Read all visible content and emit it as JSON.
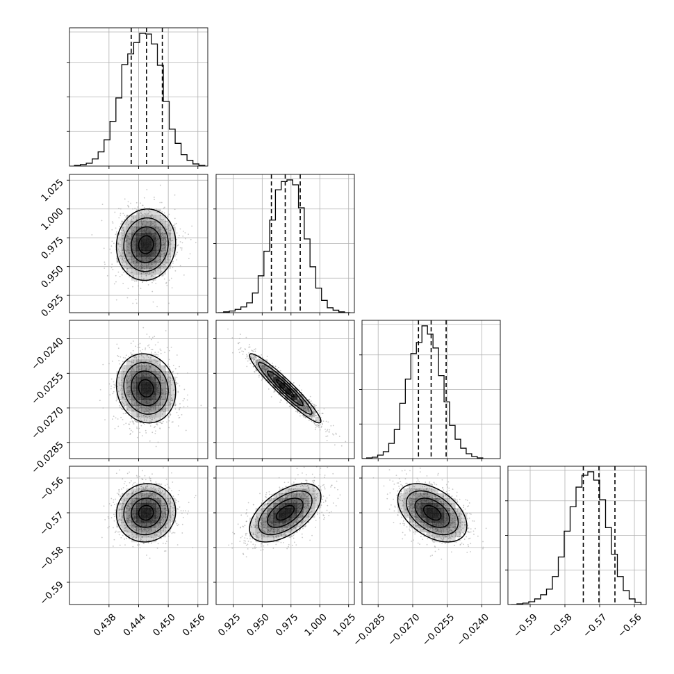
{
  "chart_data": {
    "type": "corner",
    "parameters": 4,
    "ticks": [
      {
        "values": [
          0.438,
          0.444,
          0.45,
          0.456
        ],
        "labels": [
          "0.438",
          "0.444",
          "0.450",
          "0.456"
        ],
        "range": [
          0.43,
          0.458
        ]
      },
      {
        "values": [
          0.925,
          0.95,
          0.975,
          1.0,
          1.025
        ],
        "labels": [
          "0.925",
          "0.950",
          "0.975",
          "1.000",
          "1.025"
        ],
        "range": [
          0.91,
          1.03
        ]
      },
      {
        "values": [
          -0.0285,
          -0.027,
          -0.0255,
          -0.024
        ],
        "labels": [
          "−0.0285",
          "−0.0270",
          "−0.0255",
          "−0.0240"
        ],
        "range": [
          -0.0292,
          -0.0232
        ]
      },
      {
        "values": [
          -0.59,
          -0.58,
          -0.57,
          -0.56
        ],
        "labels": [
          "−0.59",
          "−0.58",
          "−0.57",
          "−0.56"
        ],
        "range": [
          -0.5964,
          -0.5566
        ]
      }
    ],
    "histograms": [
      {
        "parameter": 0,
        "bin_centers": [
          0.4316,
          0.4328,
          0.434,
          0.4352,
          0.4364,
          0.4376,
          0.4388,
          0.44,
          0.4412,
          0.4424,
          0.4436,
          0.4448,
          0.446,
          0.4472,
          0.4484,
          0.4496,
          0.4508,
          0.452,
          0.4532,
          0.4544,
          0.4556,
          0.4568
        ],
        "counts": [
          1,
          2,
          4,
          10,
          20,
          37,
          63,
          96,
          143,
          158,
          174,
          187,
          186,
          172,
          142,
          91,
          52,
          32,
          16,
          8,
          3,
          1
        ],
        "quantiles": [
          0.4425,
          0.4456,
          0.4488
        ]
      },
      {
        "parameter": 1,
        "bin_centers": [
          0.914,
          0.919,
          0.924,
          0.929,
          0.934,
          0.939,
          0.944,
          0.949,
          0.954,
          0.959,
          0.964,
          0.969,
          0.974,
          0.979,
          0.984,
          0.989,
          0.994,
          0.999,
          1.004,
          1.009,
          1.014,
          1.019,
          1.024
        ],
        "counts": [
          0,
          1,
          2,
          4,
          7,
          12,
          24,
          45,
          75,
          113,
          150,
          160,
          162,
          156,
          128,
          90,
          56,
          30,
          15,
          6,
          3,
          1,
          0
        ],
        "quantiles": [
          0.958,
          0.97,
          0.983
        ]
      },
      {
        "parameter": 2,
        "bin_centers": [
          -0.02912,
          -0.02888,
          -0.02864,
          -0.0284,
          -0.02816,
          -0.02792,
          -0.02768,
          -0.02744,
          -0.0272,
          -0.02696,
          -0.02672,
          -0.02648,
          -0.02624,
          -0.026,
          -0.02576,
          -0.02552,
          -0.02528,
          -0.02504,
          -0.0248,
          -0.02456,
          -0.02432,
          -0.02408
        ],
        "counts": [
          0,
          1,
          2,
          5,
          10,
          22,
          42,
          80,
          115,
          152,
          168,
          192,
          180,
          160,
          120,
          82,
          48,
          28,
          15,
          7,
          3,
          1
        ],
        "quantiles": [
          -0.02675,
          -0.0262,
          -0.02555
        ]
      },
      {
        "parameter": 3,
        "bin_centers": [
          -0.59465,
          -0.59295,
          -0.59125,
          -0.58955,
          -0.58785,
          -0.58615,
          -0.58445,
          -0.58275,
          -0.58105,
          -0.57935,
          -0.57765,
          -0.57595,
          -0.57425,
          -0.57255,
          -0.57085,
          -0.56915,
          -0.56745,
          -0.56575,
          -0.56405,
          -0.56235,
          -0.56065,
          -0.55895
        ],
        "counts": [
          0,
          1,
          2,
          4,
          8,
          14,
          22,
          40,
          68,
          105,
          140,
          168,
          185,
          190,
          178,
          150,
          110,
          72,
          40,
          20,
          8,
          3
        ],
        "quantiles": [
          -0.5747,
          -0.5702,
          -0.5656
        ]
      }
    ],
    "pairs": [
      {
        "x": 0,
        "y": 1,
        "center": [
          0.4455,
          0.969
        ],
        "sd": [
          0.003,
          0.0155
        ],
        "corr": 0.05
      },
      {
        "x": 0,
        "y": 2,
        "center": [
          0.4455,
          -0.02615
        ],
        "sd": [
          0.003,
          0.00075
        ],
        "corr": -0.1
      },
      {
        "x": 1,
        "y": 2,
        "center": [
          0.97,
          -0.02615
        ],
        "sd": [
          0.0155,
          0.00075
        ],
        "corr": -0.95
      },
      {
        "x": 0,
        "y": 3,
        "center": [
          0.4455,
          -0.57
        ],
        "sd": [
          0.003,
          0.0042
        ],
        "corr": 0.05
      },
      {
        "x": 1,
        "y": 3,
        "center": [
          0.97,
          -0.57
        ],
        "sd": [
          0.0155,
          0.0042
        ],
        "corr": 0.55
      },
      {
        "x": 2,
        "y": 3,
        "center": [
          -0.02615,
          -0.57
        ],
        "sd": [
          0.00075,
          0.0042
        ],
        "corr": -0.45
      }
    ],
    "colors": {
      "line": "#000000",
      "grid": "#b0b0b0",
      "points": "#9a9a9a",
      "density": "#000000"
    },
    "grid": true,
    "xlabel": "",
    "ylabel": "",
    "title": ""
  }
}
